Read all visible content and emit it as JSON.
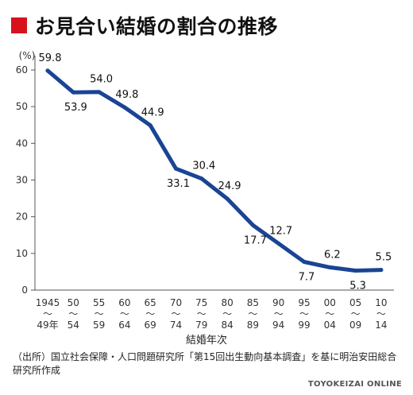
{
  "title": "お見合い結婚の割合の推移",
  "source": "（出所）国立社会保障・人口問題研究所「第15回出生動向基本調査」を基に明治安田総合研究所作成",
  "credit": "TOYOKEIZAI ONLINE",
  "colors": {
    "title_square": "#d7121b",
    "line": "#1a4494"
  },
  "chart_data": {
    "type": "line",
    "title": "お見合い結婚の割合の推移",
    "xlabel": "結婚年次",
    "ylabel": "(%)",
    "ylim": [
      0,
      60
    ],
    "yticks": [
      0,
      10,
      20,
      30,
      40,
      50,
      60
    ],
    "grid": false,
    "categories": [
      [
        "1945",
        "〜",
        "49年"
      ],
      [
        "50",
        "〜",
        "54"
      ],
      [
        "55",
        "〜",
        "59"
      ],
      [
        "60",
        "〜",
        "64"
      ],
      [
        "65",
        "〜",
        "69"
      ],
      [
        "70",
        "〜",
        "74"
      ],
      [
        "75",
        "〜",
        "79"
      ],
      [
        "80",
        "〜",
        "84"
      ],
      [
        "85",
        "〜",
        "89"
      ],
      [
        "90",
        "〜",
        "94"
      ],
      [
        "95",
        "〜",
        "99"
      ],
      [
        "00",
        "〜",
        "04"
      ],
      [
        "05",
        "〜",
        "09"
      ],
      [
        "10",
        "〜",
        "14"
      ]
    ],
    "values": [
      59.8,
      53.9,
      54.0,
      49.8,
      44.9,
      33.1,
      30.4,
      24.9,
      17.7,
      12.7,
      7.7,
      6.2,
      5.3,
      5.5
    ],
    "data_labels": [
      "59.8",
      "53.9",
      "54.0",
      "49.8",
      "44.9",
      "33.1",
      "30.4",
      "24.9",
      "17.7",
      "12.7",
      "7.7",
      "6.2",
      "5.3",
      "5.5"
    ]
  }
}
